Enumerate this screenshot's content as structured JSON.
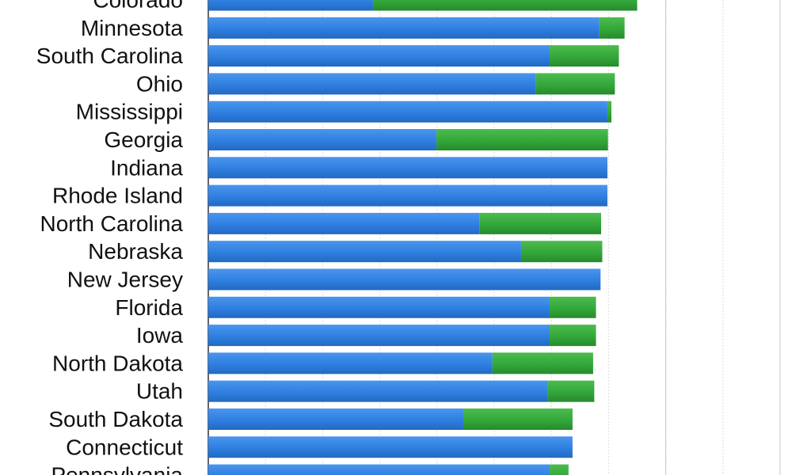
{
  "chart_data": {
    "type": "bar",
    "orientation": "horizontal",
    "stacked": true,
    "categories": [
      "Colorado",
      "Minnesota",
      "South Carolina",
      "Ohio",
      "Mississippi",
      "Georgia",
      "Indiana",
      "Rhode Island",
      "North Carolina",
      "Nebraska",
      "New Jersey",
      "Florida",
      "Iowa",
      "North Dakota",
      "Utah",
      "South Dakota",
      "Connecticut",
      "Pennsylvania"
    ],
    "series": [
      {
        "color": "#2f7fe0",
        "values": [
          28.8,
          68.4,
          59.7,
          57.3,
          69.8,
          39.9,
          69.8,
          69.8,
          47.4,
          54.7,
          68.6,
          59.7,
          59.7,
          49.7,
          59.4,
          44.6,
          63.7,
          59.7
        ]
      },
      {
        "color": "#33a73a",
        "values": [
          46.2,
          4.4,
          12.1,
          13.8,
          0.7,
          30.0,
          0,
          0,
          21.3,
          14.2,
          0,
          8.1,
          8.1,
          17.6,
          8.1,
          19.1,
          0,
          3.3
        ]
      }
    ],
    "xlim": [
      0,
      100
    ],
    "grid": true,
    "legend": "none"
  }
}
